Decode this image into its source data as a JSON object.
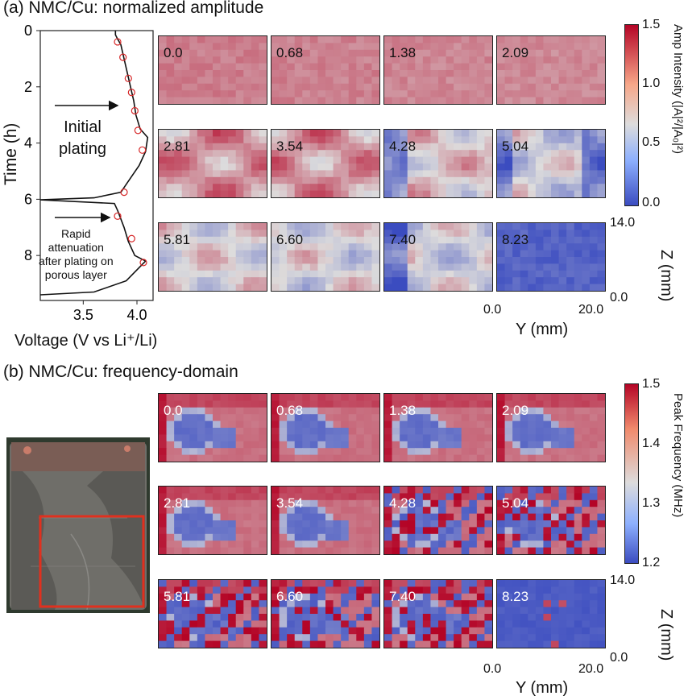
{
  "panel_a": {
    "title": "(a) NMC/Cu: normalized amplitude",
    "voltage_xlabel": "Voltage (V vs Li⁺/Li)",
    "time_ylabel": "Time (h)",
    "voltage_xticks": [
      "3.5",
      "4.0"
    ],
    "time_yticks": [
      "0",
      "2",
      "4",
      "6",
      "8"
    ],
    "annotation_initial": [
      "Initial",
      "plating"
    ],
    "annotation_rapid": [
      "Rapid",
      "attenuation",
      "after plating on",
      "porous layer"
    ],
    "tile_labels": [
      "0.0",
      "0.68",
      "1.38",
      "2.09",
      "2.81",
      "3.54",
      "4.28",
      "5.04",
      "5.81",
      "6.60",
      "7.40",
      "8.23"
    ],
    "colorbar_label": "Amp Intensity (|A|²/|A₀|²)",
    "colorbar_ticks": [
      "1.5",
      "1.0",
      "0.5",
      "0.0"
    ],
    "z_label": "Z (mm)",
    "z_ticks": [
      "14.0",
      "0.0"
    ],
    "y_label": "Y (mm)",
    "y_ticks": [
      "0.0",
      "20.0"
    ]
  },
  "panel_b": {
    "title": "(b) NMC/Cu: frequency-domain",
    "tile_labels": [
      "0.0",
      "0.68",
      "1.38",
      "2.09",
      "2.81",
      "3.54",
      "4.28",
      "5.04",
      "5.81",
      "6.60",
      "7.40",
      "8.23"
    ],
    "colorbar_label": "Peak Frequency (MHz)",
    "colorbar_ticks": [
      "1.5",
      "1.4",
      "1.3",
      "1.2"
    ],
    "z_label": "Z (mm)",
    "z_ticks": [
      "14.0",
      "0.0"
    ],
    "y_label": "Y (mm)",
    "y_ticks": [
      "0.0",
      "20.0"
    ]
  },
  "colors": {
    "amp_high": "#b40426",
    "amp_mid": "#dddcdc",
    "amp_low": "#3b4cc0",
    "marker": "#d62728",
    "photo_box": "#e0301e"
  },
  "chart_data": [
    {
      "type": "line",
      "title": "",
      "xlabel": "Voltage (V vs Li⁺/Li)",
      "ylabel": "Time (h)",
      "xlim": [
        3.1,
        4.15
      ],
      "ylim": [
        9.6,
        0
      ],
      "series": [
        {
          "values": [
            [
              3.8,
              0.0
            ],
            [
              3.8,
              0.15
            ],
            [
              3.82,
              0.3
            ],
            [
              3.85,
              0.5
            ],
            [
              3.88,
              1.0
            ],
            [
              3.91,
              1.5
            ],
            [
              3.94,
              2.0
            ],
            [
              3.97,
              2.5
            ],
            [
              3.99,
              3.0
            ],
            [
              4.03,
              3.5
            ],
            [
              4.1,
              3.8
            ],
            [
              4.08,
              4.3
            ],
            [
              4.02,
              4.8
            ],
            [
              3.93,
              5.3
            ],
            [
              3.85,
              5.75
            ],
            [
              3.6,
              5.95
            ],
            [
              3.1,
              6.02
            ],
            [
              3.79,
              6.15
            ],
            [
              3.82,
              6.4
            ],
            [
              3.88,
              7.0
            ],
            [
              3.92,
              7.5
            ],
            [
              3.98,
              8.0
            ],
            [
              4.08,
              8.2
            ],
            [
              3.9,
              8.9
            ],
            [
              3.6,
              9.3
            ],
            [
              3.1,
              9.4
            ]
          ]
        }
      ],
      "markers": [
        [
          3.82,
          0.4
        ],
        [
          3.87,
          0.95
        ],
        [
          3.92,
          1.7
        ],
        [
          3.95,
          2.2
        ],
        [
          3.98,
          2.85
        ],
        [
          4.01,
          3.55
        ],
        [
          4.05,
          4.25
        ],
        [
          3.88,
          5.75
        ],
        [
          3.82,
          6.6
        ],
        [
          3.95,
          7.4
        ],
        [
          4.06,
          8.25
        ]
      ],
      "annotations": [
        "Initial plating",
        "Rapid attenuation after plating on porous layer"
      ]
    },
    {
      "type": "heatmap",
      "title": "NMC/Cu: normalized amplitude",
      "xlabel": "Y (mm)",
      "ylabel": "Z (mm)",
      "xlim": [
        0.0,
        20.0
      ],
      "ylim": [
        0.0,
        14.0
      ],
      "color_range": [
        0.0,
        1.5
      ],
      "colorbar_label": "Amp Intensity (|A|²/|A₀|²)",
      "time_labels": [
        "0.0",
        "0.68",
        "1.38",
        "2.09",
        "2.81",
        "3.54",
        "4.28",
        "5.04",
        "5.81",
        "6.60",
        "7.40",
        "8.23"
      ]
    },
    {
      "type": "heatmap",
      "title": "NMC/Cu: frequency-domain",
      "xlabel": "Y (mm)",
      "ylabel": "Z (mm)",
      "xlim": [
        0.0,
        20.0
      ],
      "ylim": [
        0.0,
        14.0
      ],
      "color_range": [
        1.2,
        1.5
      ],
      "colorbar_label": "Peak Frequency (MHz)",
      "time_labels": [
        "0.0",
        "0.68",
        "1.38",
        "2.09",
        "2.81",
        "3.54",
        "4.28",
        "5.04",
        "5.81",
        "6.60",
        "7.40",
        "8.23"
      ]
    }
  ]
}
